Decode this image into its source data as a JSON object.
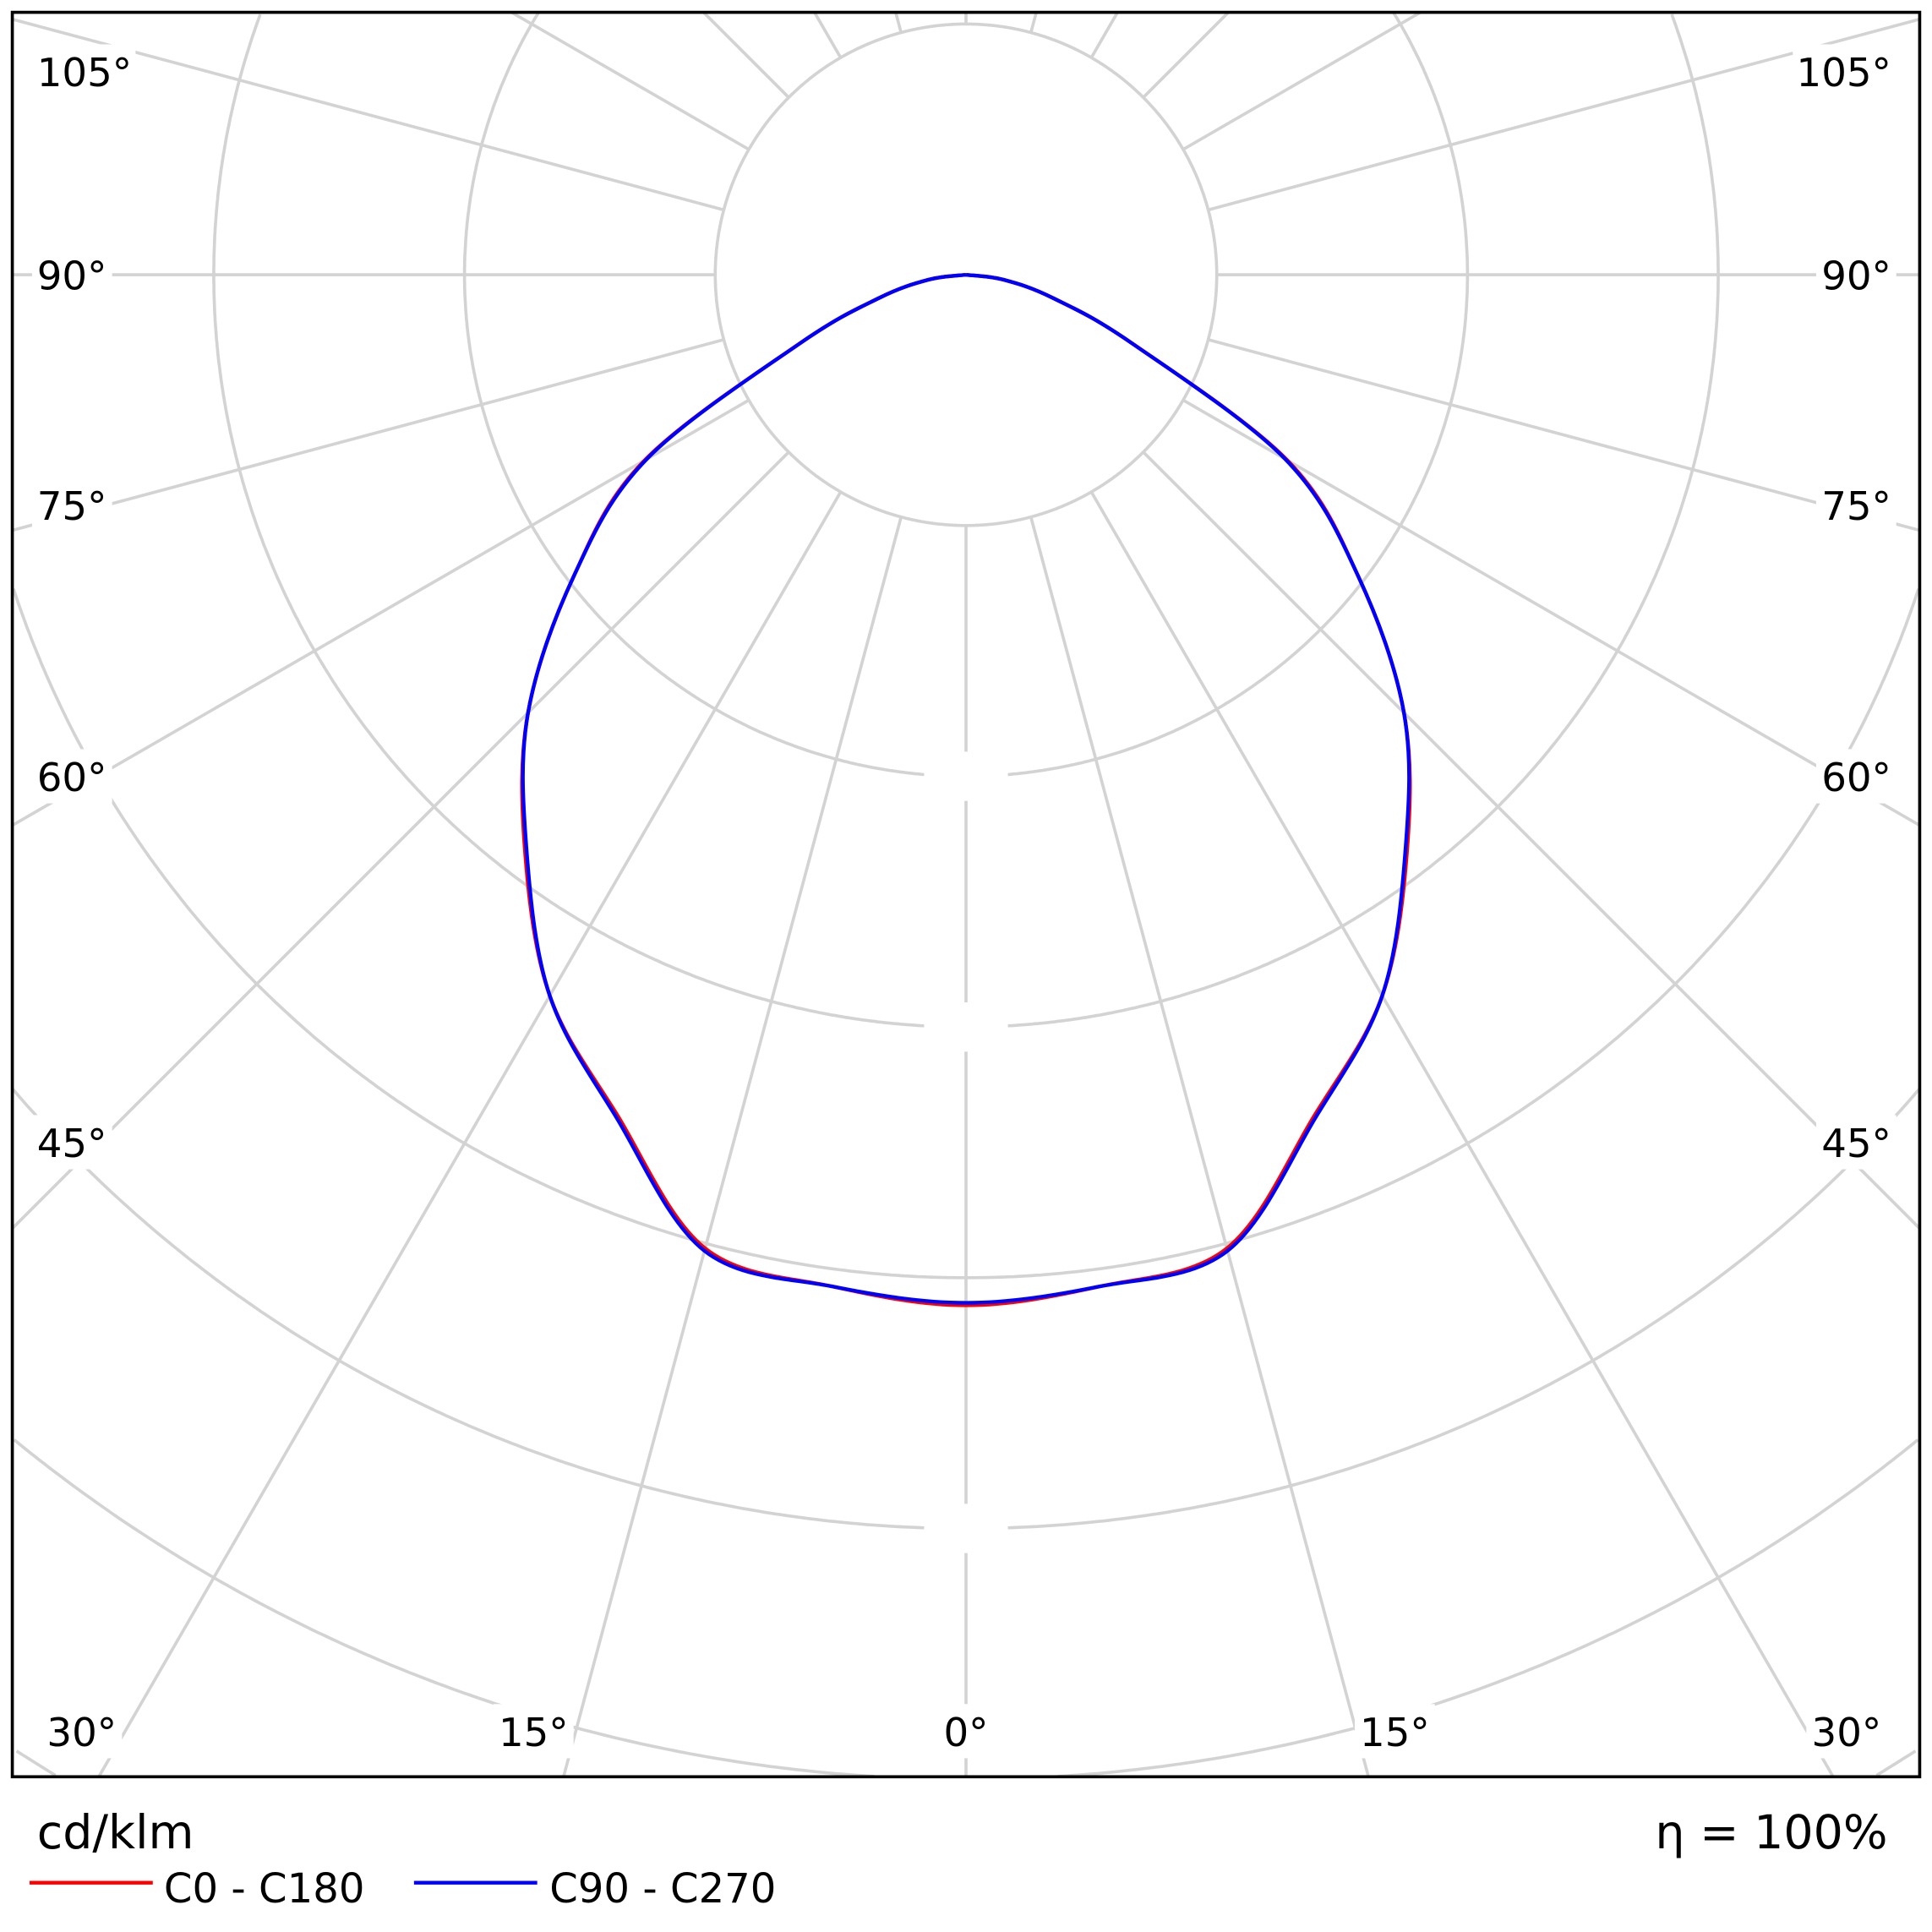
{
  "chart_data": {
    "type": "polar",
    "title": "",
    "unit_label": "cd/klm",
    "efficiency_label": "η = 100%",
    "angle_labels_left": [
      "105°",
      "90°",
      "75°",
      "60°",
      "45°",
      "30°",
      "15°"
    ],
    "angle_labels_bottom": [
      "0°"
    ],
    "angle_labels_right": [
      "15°",
      "30°",
      "45°",
      "60°",
      "75°",
      "90°",
      "105°"
    ],
    "angular_grid_step_deg": 15,
    "radial_ring_count": 7,
    "radial_tick_labels": [],
    "grid": true,
    "legend_placement": "bottom-left",
    "gamma_deg": [
      0,
      7.5,
      15,
      22.5,
      30,
      37.5,
      45,
      52.5,
      60,
      67.5,
      75,
      82.5,
      90
    ],
    "series": [
      {
        "name": "C0 - C180",
        "color": "#ff0000",
        "values_ring_units": [
          4.11,
          4.07,
          4.02,
          3.63,
          3.32,
          2.89,
          2.47,
          1.97,
          1.48,
          0.72,
          0.36,
          0.15,
          0
        ]
      },
      {
        "name": "C90 - C270",
        "color": "#0000ff",
        "values_ring_units": [
          4.1,
          4.07,
          4.03,
          3.64,
          3.32,
          2.88,
          2.47,
          1.97,
          1.47,
          0.72,
          0.36,
          0.15,
          0
        ]
      }
    ]
  }
}
